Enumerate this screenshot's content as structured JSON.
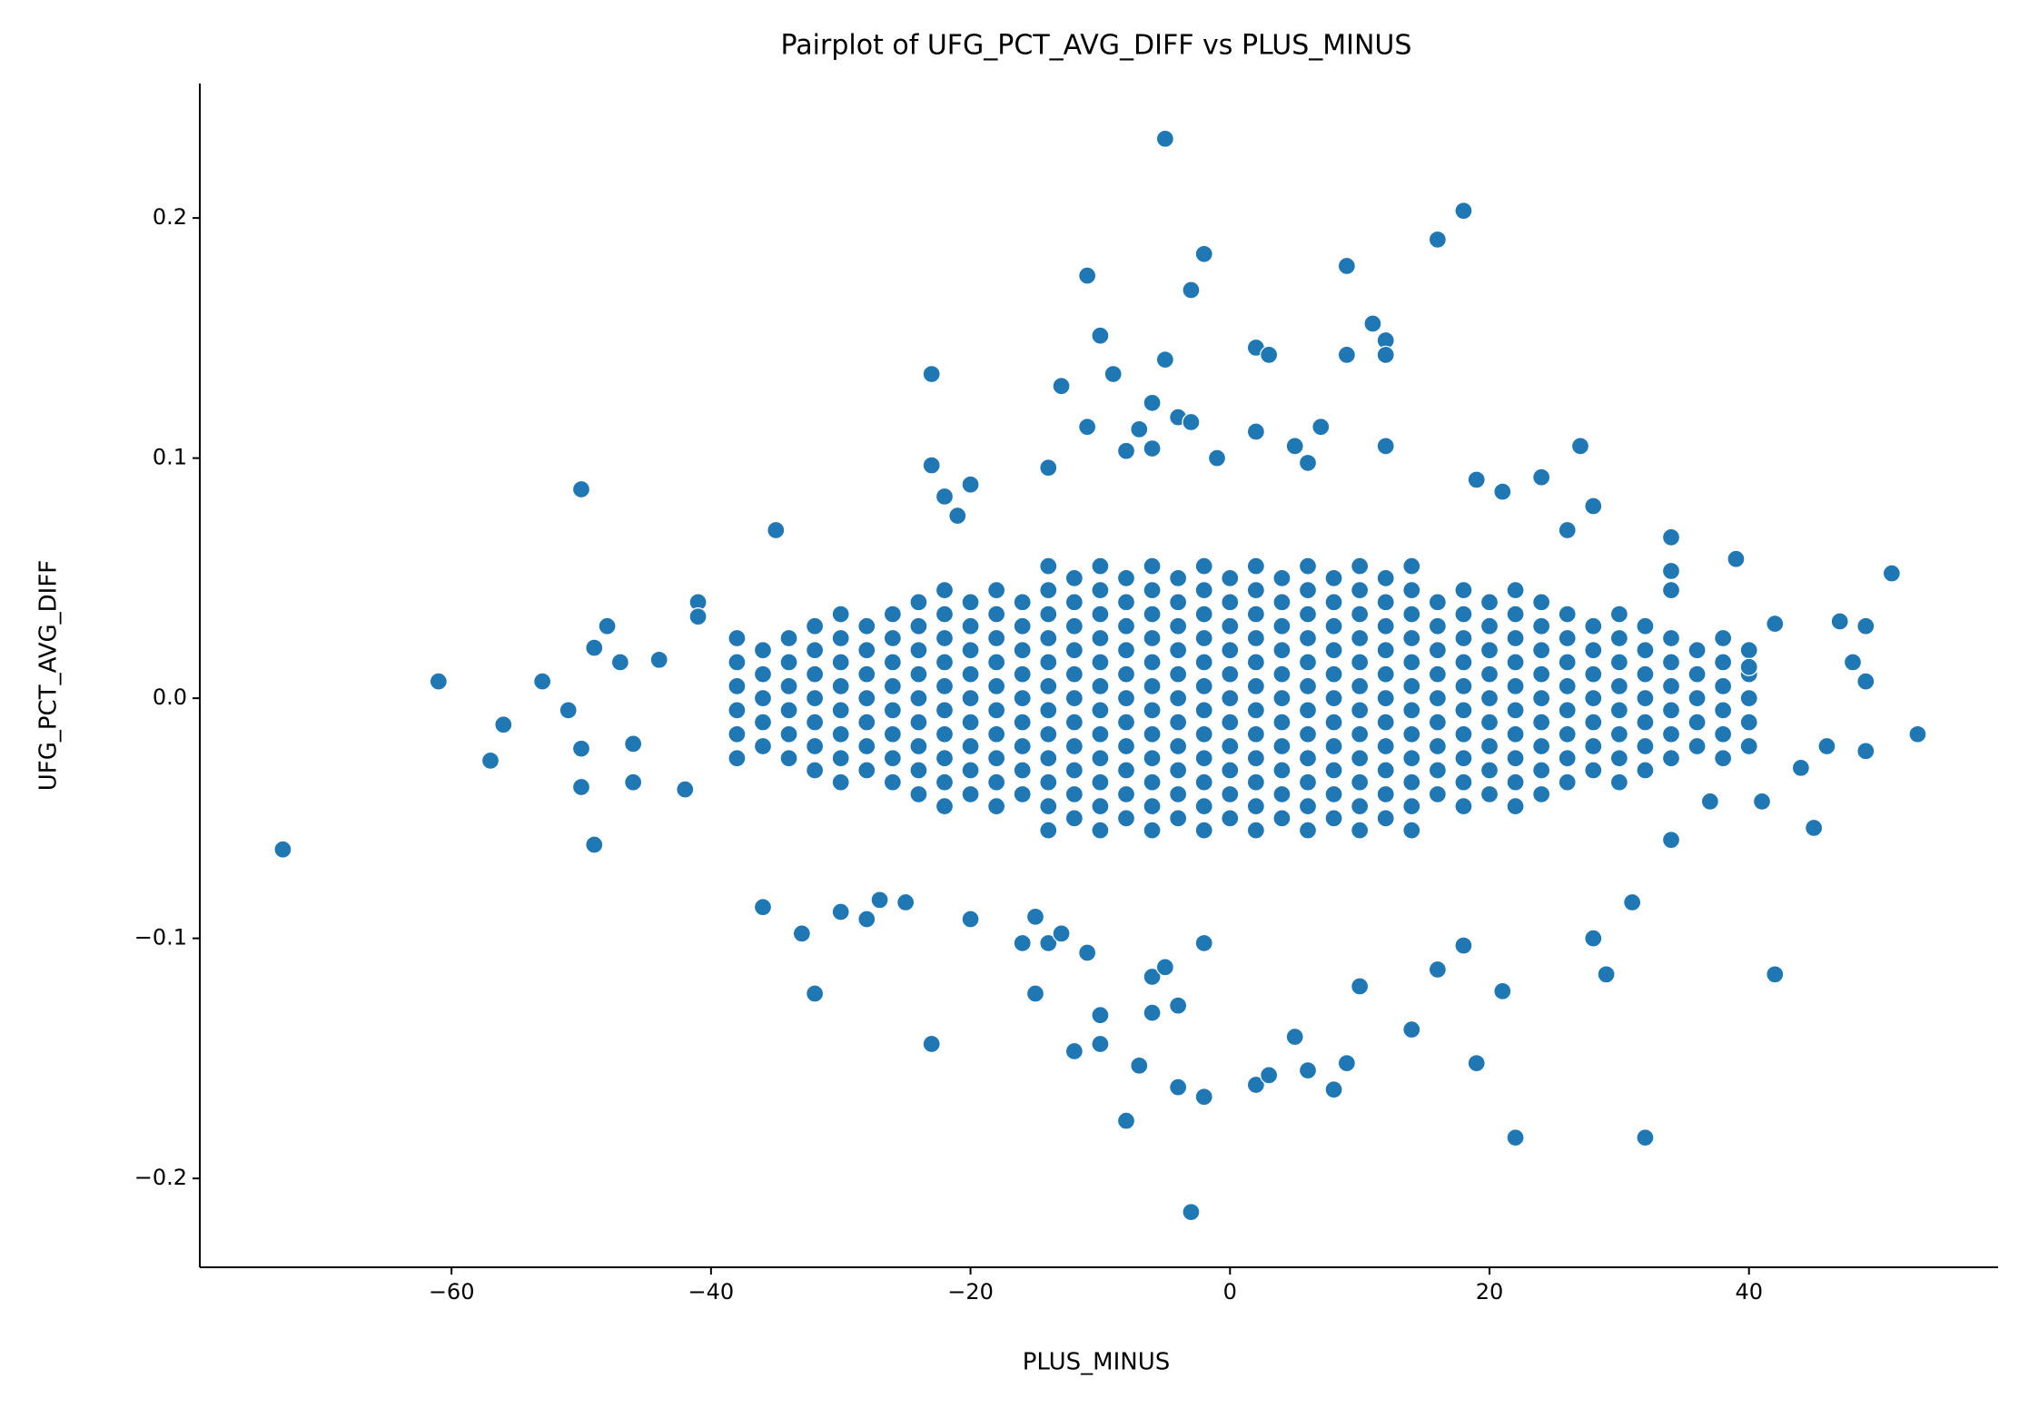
{
  "chart_data": {
    "type": "scatter",
    "title": "Pairplot of UFG_PCT_AVG_DIFF vs PLUS_MINUS",
    "x_label": "PLUS_MINUS",
    "y_label": "UFG_PCT_AVG_DIFF",
    "color": "#1f77b4",
    "xlim": [
      -79.4,
      59.2
    ],
    "ylim": [
      -0.237,
      0.256
    ],
    "xticks": [
      {
        "value": -60,
        "label": "−60"
      },
      {
        "value": -40,
        "label": "−40"
      },
      {
        "value": -20,
        "label": "−20"
      },
      0,
      20,
      40
    ],
    "yticks": [
      {
        "value": -0.2,
        "label": "−0.2"
      },
      {
        "value": -0.1,
        "label": "−0.1"
      },
      {
        "value": 0,
        "label": "0.0"
      },
      0.1,
      0.2
    ],
    "x": [
      -38,
      -38,
      -38,
      -38,
      -38,
      -38,
      -36,
      -36,
      -36,
      -36,
      -36,
      -34,
      -34,
      -34,
      -34,
      -34,
      -34,
      -32,
      -32,
      -32,
      -32,
      -32,
      -32,
      -32,
      -30,
      -30,
      -30,
      -30,
      -30,
      -30,
      -30,
      -30,
      -28,
      -28,
      -28,
      -28,
      -28,
      -28,
      -28,
      -26,
      -26,
      -26,
      -26,
      -26,
      -26,
      -26,
      -26,
      -24,
      -24,
      -24,
      -24,
      -24,
      -24,
      -24,
      -24,
      -24,
      -22,
      -22,
      -22,
      -22,
      -22,
      -22,
      -22,
      -22,
      -22,
      -22,
      -20,
      -20,
      -20,
      -20,
      -20,
      -20,
      -20,
      -20,
      -20,
      -18,
      -18,
      -18,
      -18,
      -18,
      -18,
      -18,
      -18,
      -18,
      -18,
      -16,
      -16,
      -16,
      -16,
      -16,
      -16,
      -16,
      -16,
      -16,
      -14,
      -14,
      -14,
      -14,
      -14,
      -14,
      -14,
      -14,
      -14,
      -14,
      -14,
      -14,
      -12,
      -12,
      -12,
      -12,
      -12,
      -12,
      -12,
      -12,
      -12,
      -12,
      -12,
      -10,
      -10,
      -10,
      -10,
      -10,
      -10,
      -10,
      -10,
      -10,
      -10,
      -10,
      -10,
      -8,
      -8,
      -8,
      -8,
      -8,
      -8,
      -8,
      -8,
      -8,
      -8,
      -8,
      -6,
      -6,
      -6,
      -6,
      -6,
      -6,
      -6,
      -6,
      -6,
      -6,
      -6,
      -6,
      -4,
      -4,
      -4,
      -4,
      -4,
      -4,
      -4,
      -4,
      -4,
      -4,
      -4,
      -2,
      -2,
      -2,
      -2,
      -2,
      -2,
      -2,
      -2,
      -2,
      -2,
      -2,
      -2,
      0,
      0,
      0,
      0,
      0,
      0,
      0,
      0,
      0,
      0,
      0,
      2,
      2,
      2,
      2,
      2,
      2,
      2,
      2,
      2,
      2,
      2,
      2,
      4,
      4,
      4,
      4,
      4,
      4,
      4,
      4,
      4,
      4,
      4,
      6,
      6,
      6,
      6,
      6,
      6,
      6,
      6,
      6,
      6,
      6,
      6,
      8,
      8,
      8,
      8,
      8,
      8,
      8,
      8,
      8,
      8,
      8,
      10,
      10,
      10,
      10,
      10,
      10,
      10,
      10,
      10,
      10,
      10,
      10,
      12,
      12,
      12,
      12,
      12,
      12,
      12,
      12,
      12,
      12,
      12,
      14,
      14,
      14,
      14,
      14,
      14,
      14,
      14,
      14,
      14,
      14,
      14,
      16,
      16,
      16,
      16,
      16,
      16,
      16,
      16,
      16,
      18,
      18,
      18,
      18,
      18,
      18,
      18,
      18,
      18,
      18,
      20,
      20,
      20,
      20,
      20,
      20,
      20,
      20,
      20,
      22,
      22,
      22,
      22,
      22,
      22,
      22,
      22,
      22,
      22,
      24,
      24,
      24,
      24,
      24,
      24,
      24,
      24,
      24,
      26,
      26,
      26,
      26,
      26,
      26,
      26,
      26,
      28,
      28,
      28,
      28,
      28,
      28,
      28,
      30,
      30,
      30,
      30,
      30,
      30,
      30,
      30,
      32,
      32,
      32,
      32,
      32,
      32,
      32,
      34,
      34,
      34,
      34,
      34,
      34,
      36,
      36,
      36,
      36,
      36,
      38,
      38,
      38,
      38,
      38,
      38,
      40,
      40,
      40,
      40,
      40,
      -73,
      -61,
      -57,
      -56,
      -53,
      -51,
      -50,
      -50,
      -50,
      -49,
      -49,
      -48,
      -47,
      -46,
      -46,
      -44,
      -42,
      -41,
      -41,
      -35,
      -36,
      -33,
      -32,
      -30,
      -28,
      -27,
      -25,
      -23,
      -23,
      -23,
      -22,
      -20,
      -21,
      -20,
      -16,
      -15,
      -15,
      -14,
      -13,
      -12,
      -11,
      -10,
      -10,
      -11,
      -10,
      -9,
      -13,
      -14,
      -11,
      -8,
      -7,
      -6,
      -6,
      -5,
      -5,
      -4,
      -3,
      -3,
      -2,
      -1,
      -8,
      -7,
      -6,
      -6,
      -5,
      -4,
      -4,
      -3,
      -2,
      -2,
      2,
      3,
      2,
      5,
      7,
      6,
      9,
      9,
      11,
      12,
      12,
      12,
      16,
      18,
      19,
      21,
      24,
      26,
      27,
      28,
      2,
      3,
      5,
      6,
      8,
      9,
      10,
      14,
      16,
      18,
      19,
      21,
      22,
      28,
      29,
      31,
      32,
      42,
      34,
      39,
      51,
      53,
      49,
      49,
      49,
      48,
      47,
      46,
      45,
      44,
      42,
      41,
      40,
      37,
      34,
      34,
      34
    ],
    "y": [
      -0.025,
      -0.015,
      -0.005,
      0.005,
      0.015,
      0.025,
      -0.02,
      -0.01,
      0,
      0.01,
      0.02,
      -0.025,
      -0.015,
      -0.005,
      0.005,
      0.015,
      0.025,
      -0.03,
      -0.02,
      -0.01,
      0,
      0.01,
      0.02,
      0.03,
      -0.035,
      -0.025,
      -0.015,
      -0.005,
      0.005,
      0.015,
      0.025,
      0.035,
      -0.03,
      -0.02,
      -0.01,
      0,
      0.01,
      0.02,
      0.03,
      -0.035,
      -0.025,
      -0.015,
      -0.005,
      0.005,
      0.015,
      0.025,
      0.035,
      -0.04,
      -0.03,
      -0.02,
      -0.01,
      0,
      0.01,
      0.02,
      0.03,
      0.04,
      -0.045,
      -0.035,
      -0.025,
      -0.015,
      -0.005,
      0.005,
      0.015,
      0.025,
      0.035,
      0.045,
      -0.04,
      -0.03,
      -0.02,
      -0.01,
      0,
      0.01,
      0.02,
      0.03,
      0.04,
      -0.045,
      -0.035,
      -0.025,
      -0.015,
      -0.005,
      0.005,
      0.015,
      0.025,
      0.035,
      0.045,
      -0.04,
      -0.03,
      -0.02,
      -0.01,
      0,
      0.01,
      0.02,
      0.03,
      0.04,
      -0.055,
      -0.045,
      -0.035,
      -0.025,
      -0.015,
      -0.005,
      0.005,
      0.015,
      0.025,
      0.035,
      0.045,
      0.055,
      -0.05,
      -0.04,
      -0.03,
      -0.02,
      -0.01,
      0,
      0.01,
      0.02,
      0.03,
      0.04,
      0.05,
      -0.055,
      -0.045,
      -0.035,
      -0.025,
      -0.015,
      -0.005,
      0.005,
      0.015,
      0.025,
      0.035,
      0.045,
      0.055,
      -0.05,
      -0.04,
      -0.03,
      -0.02,
      -0.01,
      0,
      0.01,
      0.02,
      0.03,
      0.04,
      0.05,
      -0.055,
      -0.045,
      -0.035,
      -0.025,
      -0.015,
      -0.005,
      0.005,
      0.015,
      0.025,
      0.035,
      0.045,
      0.055,
      -0.05,
      -0.04,
      -0.03,
      -0.02,
      -0.01,
      0,
      0.01,
      0.02,
      0.03,
      0.04,
      0.05,
      -0.055,
      -0.045,
      -0.035,
      -0.025,
      -0.015,
      -0.005,
      0.005,
      0.015,
      0.025,
      0.035,
      0.045,
      0.055,
      -0.05,
      -0.04,
      -0.03,
      -0.02,
      -0.01,
      0,
      0.01,
      0.02,
      0.03,
      0.04,
      0.05,
      -0.055,
      -0.045,
      -0.035,
      -0.025,
      -0.015,
      -0.005,
      0.005,
      0.015,
      0.025,
      0.035,
      0.045,
      0.055,
      -0.05,
      -0.04,
      -0.03,
      -0.02,
      -0.01,
      0,
      0.01,
      0.02,
      0.03,
      0.04,
      0.05,
      -0.055,
      -0.045,
      -0.035,
      -0.025,
      -0.015,
      -0.005,
      0.005,
      0.015,
      0.025,
      0.035,
      0.045,
      0.055,
      -0.05,
      -0.04,
      -0.03,
      -0.02,
      -0.01,
      0,
      0.01,
      0.02,
      0.03,
      0.04,
      0.05,
      -0.055,
      -0.045,
      -0.035,
      -0.025,
      -0.015,
      -0.005,
      0.005,
      0.015,
      0.025,
      0.035,
      0.045,
      0.055,
      -0.05,
      -0.04,
      -0.03,
      -0.02,
      -0.01,
      0,
      0.01,
      0.02,
      0.03,
      0.04,
      0.05,
      -0.055,
      -0.045,
      -0.035,
      -0.025,
      -0.015,
      -0.005,
      0.005,
      0.015,
      0.025,
      0.035,
      0.045,
      0.055,
      -0.04,
      -0.03,
      -0.02,
      -0.01,
      0,
      0.01,
      0.02,
      0.03,
      0.04,
      -0.045,
      -0.035,
      -0.025,
      -0.015,
      -0.005,
      0.005,
      0.015,
      0.025,
      0.035,
      0.045,
      -0.04,
      -0.03,
      -0.02,
      -0.01,
      0,
      0.01,
      0.02,
      0.03,
      0.04,
      -0.045,
      -0.035,
      -0.025,
      -0.015,
      -0.005,
      0.005,
      0.015,
      0.025,
      0.035,
      0.045,
      -0.04,
      -0.03,
      -0.02,
      -0.01,
      0,
      0.01,
      0.02,
      0.03,
      0.04,
      -0.035,
      -0.025,
      -0.015,
      -0.005,
      0.005,
      0.015,
      0.025,
      0.035,
      -0.03,
      -0.02,
      -0.01,
      0,
      0.01,
      0.02,
      0.03,
      -0.035,
      -0.025,
      -0.015,
      -0.005,
      0.005,
      0.015,
      0.025,
      0.035,
      -0.03,
      -0.02,
      -0.01,
      0,
      0.01,
      0.02,
      0.03,
      -0.025,
      -0.015,
      -0.005,
      0.005,
      0.015,
      0.025,
      -0.02,
      -0.01,
      0,
      0.01,
      0.02,
      -0.025,
      -0.015,
      -0.005,
      0.005,
      0.015,
      0.025,
      -0.02,
      -0.01,
      0,
      0.01,
      0.02,
      -0.063,
      0.007,
      -0.026,
      -0.011,
      0.007,
      -0.005,
      0.087,
      -0.021,
      -0.037,
      -0.061,
      0.021,
      0.03,
      0.015,
      -0.035,
      -0.019,
      0.016,
      -0.038,
      0.04,
      0.034,
      0.07,
      -0.087,
      -0.098,
      -0.123,
      -0.089,
      -0.092,
      -0.084,
      -0.085,
      -0.144,
      0.135,
      0.097,
      0.084,
      0.089,
      0.076,
      -0.092,
      -0.102,
      -0.123,
      -0.091,
      -0.102,
      -0.098,
      -0.147,
      -0.106,
      -0.132,
      -0.144,
      0.176,
      0.151,
      0.135,
      0.13,
      0.096,
      0.113,
      0.103,
      0.112,
      0.123,
      0.104,
      0.141,
      0.233,
      0.117,
      0.115,
      0.17,
      0.185,
      0.1,
      -0.176,
      -0.153,
      -0.131,
      -0.116,
      -0.112,
      -0.128,
      -0.162,
      -0.214,
      -0.166,
      -0.102,
      0.146,
      0.143,
      0.111,
      0.105,
      0.113,
      0.098,
      0.18,
      0.143,
      0.156,
      0.149,
      0.143,
      0.105,
      0.191,
      0.203,
      0.091,
      0.086,
      0.092,
      0.07,
      0.105,
      0.08,
      -0.161,
      -0.157,
      -0.141,
      -0.155,
      -0.163,
      -0.152,
      -0.12,
      -0.138,
      -0.113,
      -0.103,
      -0.152,
      -0.122,
      -0.183,
      -0.1,
      -0.115,
      -0.085,
      -0.183,
      -0.115,
      -0.059,
      0.058,
      0.052,
      -0.015,
      0.03,
      0.007,
      -0.022,
      0.015,
      0.032,
      -0.02,
      -0.054,
      -0.029,
      0.031,
      -0.043,
      0.013,
      -0.043,
      0.067,
      0.053,
      0.045
    ]
  }
}
